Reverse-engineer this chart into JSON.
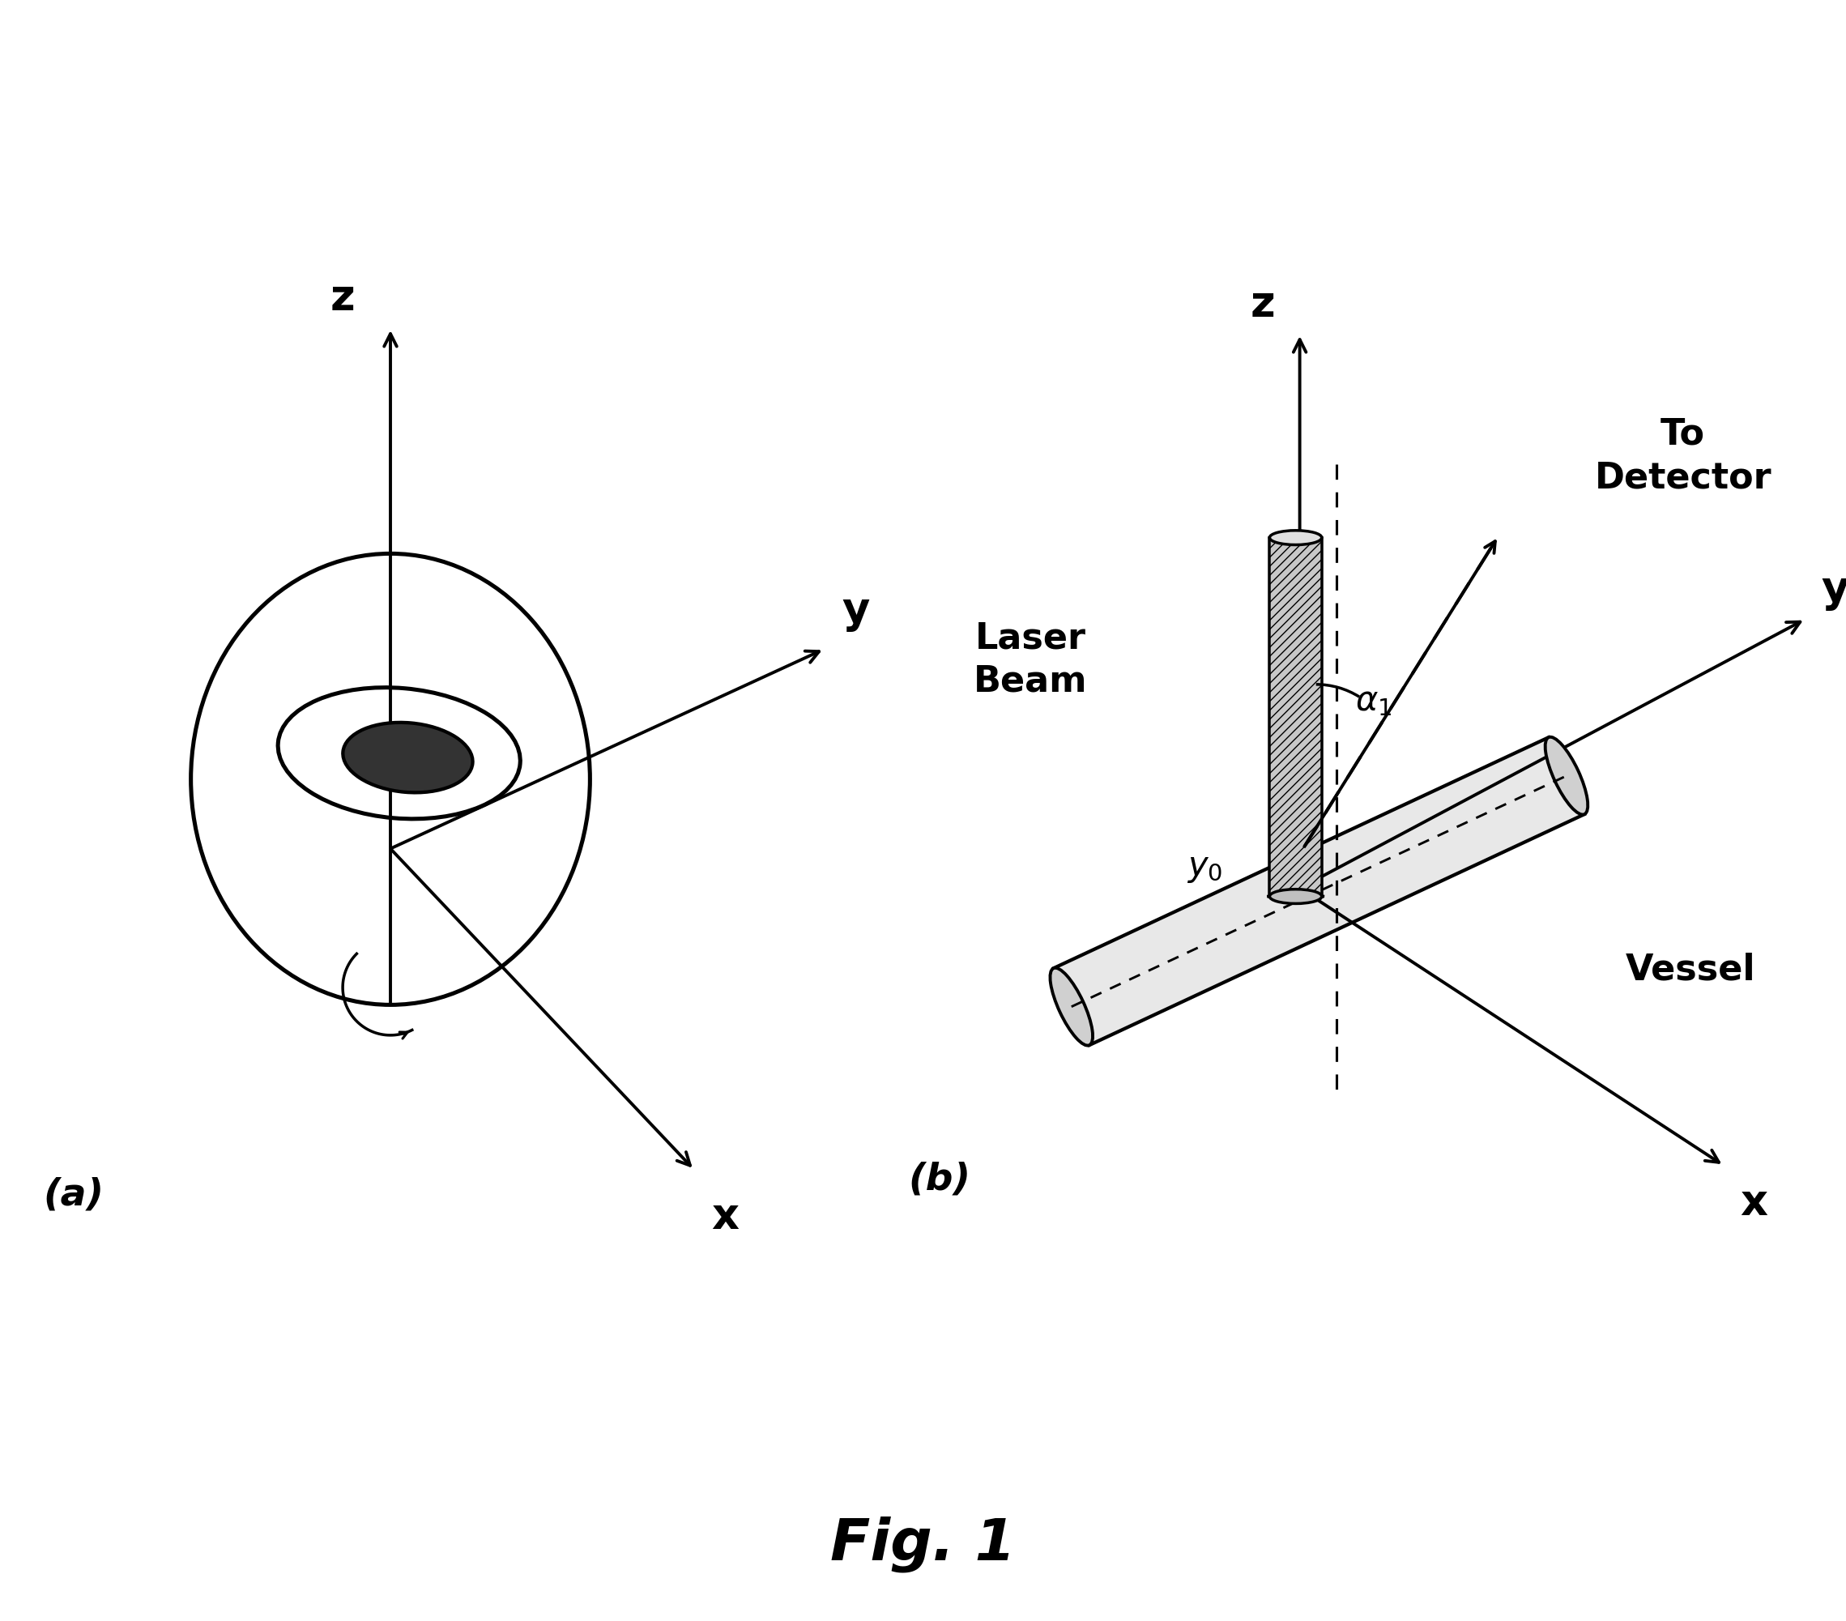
{
  "fig_width": 22.79,
  "fig_height": 20.01,
  "bg_color": "#ffffff",
  "title": "Fig. 1",
  "panel_a_label": "(a)",
  "panel_b_label": "(b)",
  "text_color": "#000000",
  "label_fontsize": 34,
  "axis_label_fontsize": 38,
  "title_fontsize": 52,
  "annotation_fontsize": 32,
  "lw": 2.8
}
